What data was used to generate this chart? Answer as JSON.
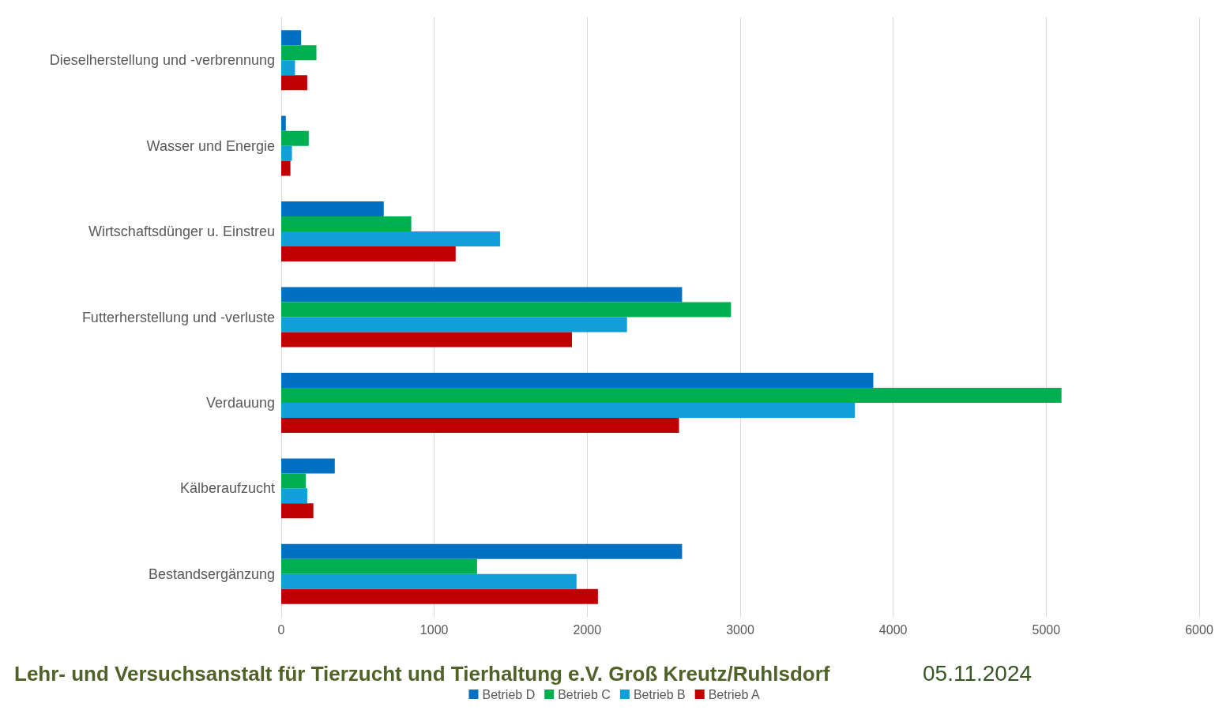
{
  "chart_data": {
    "type": "bar",
    "orientation": "horizontal",
    "categories": [
      "Dieselherstellung und -verbrennung",
      "Wasser und Energie",
      "Wirtschaftsdünger u. Einstreu",
      "Futterherstellung und -verluste",
      "Verdauung",
      "Kälberaufzucht",
      "Bestandsergänzung"
    ],
    "series": [
      {
        "name": "Betrieb D",
        "color": "#0070c0",
        "values": [
          130,
          30,
          670,
          2620,
          3870,
          350,
          2620
        ]
      },
      {
        "name": "Betrieb C",
        "color": "#00b050",
        "values": [
          230,
          180,
          850,
          2940,
          5100,
          160,
          1280
        ]
      },
      {
        "name": "Betrieb B",
        "color": "#119fd8",
        "values": [
          90,
          70,
          1430,
          2260,
          3750,
          170,
          1930
        ]
      },
      {
        "name": "Betrieb A",
        "color": "#c00000",
        "values": [
          170,
          60,
          1140,
          1900,
          2600,
          210,
          2070
        ]
      }
    ],
    "xlim": [
      0,
      6000
    ],
    "xticks": [
      0,
      1000,
      2000,
      3000,
      4000,
      5000,
      6000
    ],
    "grid": "x",
    "legend": "bottom",
    "annotations": [
      "Lehr- und Versuchsanstalt für Tierzucht und Tierhaltung e.V. Groß Kreutz/Ruhlsdorf",
      "05.11.2024"
    ]
  }
}
